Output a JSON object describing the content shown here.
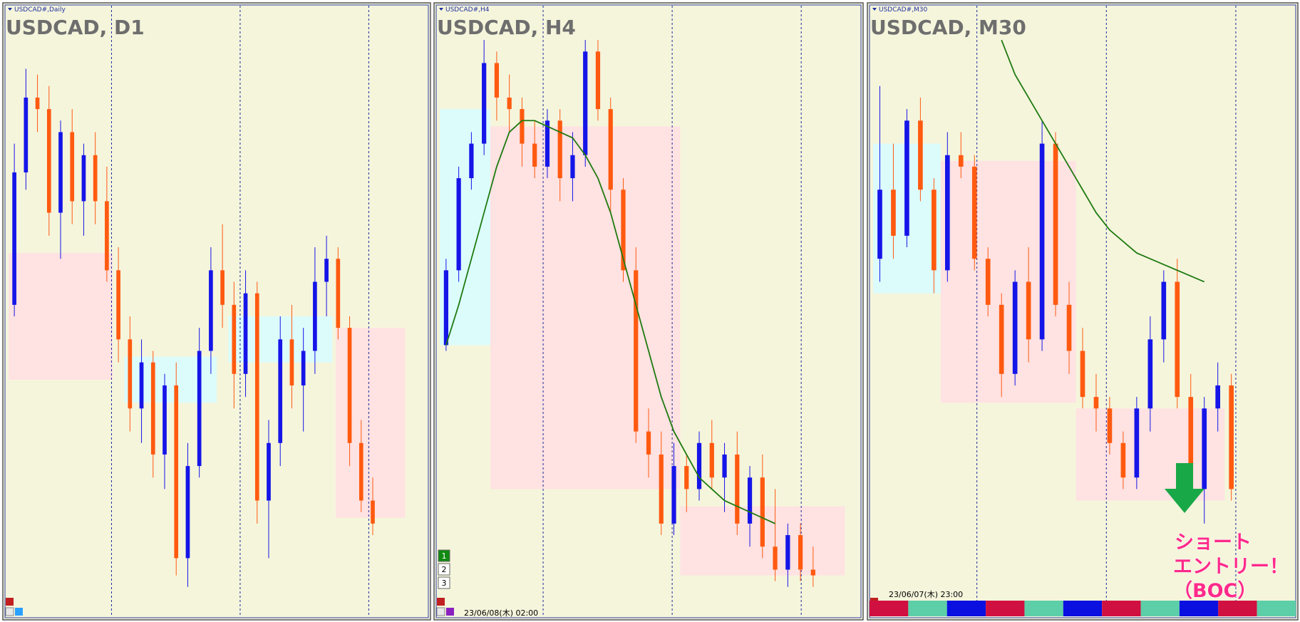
{
  "panels": [
    {
      "type": "candlestick",
      "symbol": "USDCAD#,Daily",
      "title": "USDCAD, D1",
      "ylim": [
        0,
        100
      ],
      "open": [
        52,
        75,
        88,
        86,
        68,
        82,
        70,
        78,
        70,
        58,
        46,
        34,
        42,
        26,
        38,
        8,
        24,
        44,
        58,
        52,
        40,
        54,
        18,
        28,
        46,
        38,
        44,
        56,
        60,
        48,
        28,
        18
      ],
      "high": [
        80,
        93,
        92,
        90,
        84,
        86,
        80,
        82,
        76,
        62,
        50,
        46,
        44,
        40,
        42,
        28,
        48,
        62,
        66,
        56,
        58,
        56,
        32,
        50,
        52,
        48,
        62,
        64,
        62,
        50,
        32,
        22
      ],
      "low": [
        50,
        72,
        82,
        64,
        60,
        66,
        64,
        66,
        56,
        42,
        30,
        28,
        22,
        20,
        5,
        3,
        22,
        40,
        48,
        34,
        36,
        14,
        8,
        24,
        34,
        30,
        40,
        50,
        46,
        24,
        16,
        12
      ],
      "close": [
        75,
        88,
        86,
        68,
        82,
        70,
        78,
        70,
        58,
        46,
        34,
        42,
        26,
        38,
        8,
        24,
        44,
        58,
        52,
        40,
        54,
        18,
        28,
        46,
        38,
        44,
        56,
        60,
        48,
        28,
        18,
        14
      ],
      "zones": [
        {
          "start": -0.5,
          "end": 8.5,
          "low": 39,
          "high": 61,
          "color": "#ffe2e2"
        },
        {
          "start": 9.5,
          "end": 17.5,
          "low": 35,
          "high": 43,
          "color": "#dcfcfc"
        },
        {
          "start": 18.5,
          "end": 27.5,
          "low": 42,
          "high": 50,
          "color": "#dcfcfc"
        },
        {
          "start": 27.8,
          "end": 33.8,
          "low": 15,
          "high": 48,
          "color": "#ffe2e2"
        }
      ]
    },
    {
      "type": "candlestick",
      "symbol": "USDCAD#,H4",
      "title": "USDCAD, H4",
      "ylim": [
        0,
        100
      ],
      "open": [
        45,
        58,
        74,
        80,
        94,
        88,
        86,
        80,
        76,
        84,
        74,
        78,
        96,
        86,
        72,
        58,
        30,
        26,
        14,
        24,
        20,
        28,
        22,
        26,
        14,
        22,
        10,
        6,
        12,
        6
      ],
      "high": [
        60,
        76,
        82,
        98,
        96,
        92,
        88,
        84,
        86,
        86,
        82,
        98,
        98,
        88,
        74,
        62,
        34,
        30,
        28,
        26,
        30,
        32,
        28,
        30,
        24,
        26,
        20,
        14,
        14,
        10
      ],
      "low": [
        44,
        56,
        72,
        78,
        84,
        82,
        76,
        74,
        74,
        70,
        70,
        76,
        84,
        68,
        56,
        28,
        22,
        12,
        12,
        16,
        18,
        20,
        16,
        12,
        10,
        8,
        4,
        3,
        4,
        3
      ],
      "close": [
        58,
        74,
        80,
        94,
        88,
        86,
        80,
        76,
        84,
        74,
        78,
        96,
        86,
        72,
        58,
        30,
        26,
        14,
        24,
        20,
        28,
        22,
        26,
        14,
        22,
        10,
        6,
        12,
        6,
        5
      ],
      "ma": [
        45,
        52,
        60,
        68,
        76,
        82,
        84,
        84,
        83,
        82,
        81,
        78,
        74,
        68,
        60,
        52,
        44,
        36,
        30,
        26,
        22,
        20,
        18,
        17,
        16,
        15,
        14,
        null,
        null,
        null
      ],
      "zones": [
        {
          "start": -0.5,
          "end": 3.5,
          "low": 45,
          "high": 86,
          "color": "#dcfcfc"
        },
        {
          "start": 3.5,
          "end": 18.5,
          "low": 20,
          "high": 83,
          "color": "#ffe2e2"
        },
        {
          "start": 18.5,
          "end": 31.5,
          "low": 5,
          "high": 17,
          "color": "#ffe2e2"
        }
      ],
      "buttons": [
        "1",
        "2",
        "3"
      ],
      "timestamp": "23/06/08(木) 02:00"
    },
    {
      "type": "candlestick",
      "symbol": "USDCAD#,M30",
      "title": "USDCAD, M30",
      "ylim": [
        0,
        100
      ],
      "open": [
        60,
        72,
        64,
        84,
        72,
        58,
        78,
        76,
        60,
        52,
        40,
        56,
        46,
        80,
        52,
        44,
        36,
        34,
        28,
        22,
        34,
        46,
        56,
        36,
        20,
        34,
        38
      ],
      "high": [
        90,
        80,
        86,
        88,
        74,
        82,
        82,
        78,
        62,
        54,
        58,
        62,
        84,
        82,
        56,
        48,
        40,
        36,
        30,
        36,
        50,
        58,
        60,
        40,
        36,
        42,
        40
      ],
      "low": [
        56,
        60,
        62,
        70,
        54,
        56,
        74,
        58,
        50,
        36,
        38,
        42,
        44,
        50,
        40,
        34,
        30,
        26,
        20,
        20,
        30,
        42,
        34,
        18,
        14,
        30,
        18
      ],
      "close": [
        72,
        64,
        84,
        72,
        58,
        78,
        76,
        60,
        52,
        40,
        56,
        46,
        80,
        52,
        44,
        36,
        34,
        28,
        22,
        34,
        46,
        56,
        36,
        20,
        34,
        38,
        20
      ],
      "ma": [
        null,
        null,
        null,
        null,
        null,
        null,
        null,
        null,
        null,
        98,
        92,
        88,
        84,
        80,
        76,
        72,
        68,
        65,
        63,
        61,
        60,
        59,
        58,
        57,
        56,
        null,
        null
      ],
      "zones": [
        {
          "start": -0.5,
          "end": 4.5,
          "low": 54,
          "high": 80,
          "color": "#dcfcfc"
        },
        {
          "start": 4.5,
          "end": 14.5,
          "low": 35,
          "high": 77,
          "color": "#ffe2e2"
        },
        {
          "start": 14.5,
          "end": 25.5,
          "low": 18,
          "high": 34,
          "color": "#ffe2e2"
        }
      ],
      "timestamp": "23/06/07(木) 23:00",
      "annotation": [
        "ショート",
        "エントリー！",
        "（BOC）"
      ]
    }
  ]
}
